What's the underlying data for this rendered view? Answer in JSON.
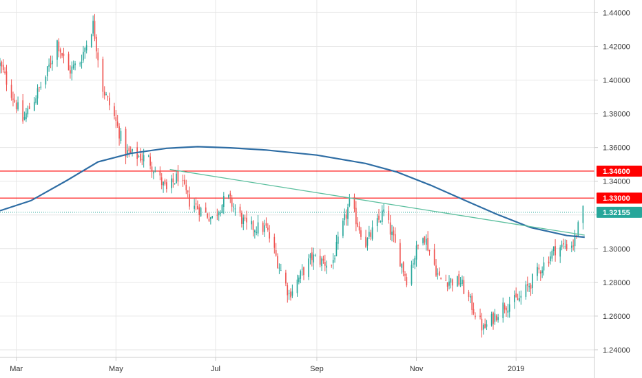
{
  "chart_data": {
    "type": "candlestick",
    "instrument_note": "",
    "colors": {
      "up": "#26a69a",
      "down": "#ef5350",
      "moving_average": "#2e6da4",
      "trendline": "#5bbf9e",
      "hline": "#ff0000",
      "last_price": "#26a69a",
      "grid": "#e6e6e6",
      "axis": "#cccccc"
    },
    "y_axis": {
      "range": [
        1.2355,
        1.4475
      ],
      "ticks": [
        "1.44000",
        "1.42000",
        "1.40000",
        "1.38000",
        "1.36000",
        "1.34000",
        "1.32000",
        "1.30000",
        "1.28000",
        "1.26000",
        "1.24000"
      ]
    },
    "x_axis": {
      "range": [
        "2018-02-19",
        "2019-02-18"
      ],
      "ticks": [
        {
          "date": "2018-03-01",
          "label": "Mar"
        },
        {
          "date": "2018-05-01",
          "label": "May"
        },
        {
          "date": "2018-07-01",
          "label": "Jul"
        },
        {
          "date": "2018-09-01",
          "label": "Sep"
        },
        {
          "date": "2018-11-01",
          "label": "Nov"
        },
        {
          "date": "2019-01-01",
          "label": "2019"
        }
      ]
    },
    "grid": true,
    "horizontal_lines": [
      {
        "value": 1.346,
        "label": "1.34600",
        "color": "#ff0000"
      },
      {
        "value": 1.33,
        "label": "1.33000",
        "color": "#ff0000"
      }
    ],
    "last_price": {
      "value": 1.32155,
      "label": "1.32155",
      "color": "#26a69a"
    },
    "trendline": {
      "start": {
        "date": "2018-06-03",
        "value": 1.347
      },
      "end": {
        "date": "2019-02-12",
        "value": 1.308
      }
    },
    "moving_average": [
      [
        "2018-02-19",
        1.3225
      ],
      [
        "2018-03-10",
        1.3285
      ],
      [
        "2018-04-01",
        1.3405
      ],
      [
        "2018-04-20",
        1.3515
      ],
      [
        "2018-05-10",
        1.3565
      ],
      [
        "2018-06-01",
        1.3595
      ],
      [
        "2018-06-20",
        1.3605
      ],
      [
        "2018-07-10",
        1.3598
      ],
      [
        "2018-08-01",
        1.3585
      ],
      [
        "2018-09-01",
        1.3555
      ],
      [
        "2018-10-01",
        1.3505
      ],
      [
        "2018-10-20",
        1.3455
      ],
      [
        "2018-11-10",
        1.3375
      ],
      [
        "2018-12-01",
        1.3285
      ],
      [
        "2018-12-20",
        1.3205
      ],
      [
        "2019-01-10",
        1.3125
      ],
      [
        "2019-02-01",
        1.3078
      ],
      [
        "2019-02-12",
        1.3068
      ]
    ],
    "price_path": [
      [
        "2018-02-19",
        1.409
      ],
      [
        "2018-03-05",
        1.376
      ],
      [
        "2018-03-19",
        1.402
      ],
      [
        "2018-03-26",
        1.423
      ],
      [
        "2018-04-02",
        1.405
      ],
      [
        "2018-04-09",
        1.411
      ],
      [
        "2018-04-17",
        1.433
      ],
      [
        "2018-04-23",
        1.395
      ],
      [
        "2018-04-30",
        1.378
      ],
      [
        "2018-05-07",
        1.357
      ],
      [
        "2018-05-21",
        1.353
      ],
      [
        "2018-06-01",
        1.334
      ],
      [
        "2018-06-08",
        1.343
      ],
      [
        "2018-06-15",
        1.328
      ],
      [
        "2018-06-29",
        1.318
      ],
      [
        "2018-07-08",
        1.331
      ],
      [
        "2018-07-20",
        1.313
      ],
      [
        "2018-08-01",
        1.312
      ],
      [
        "2018-08-15",
        1.273
      ],
      [
        "2018-08-29",
        1.295
      ],
      [
        "2018-09-10",
        1.29
      ],
      [
        "2018-09-21",
        1.327
      ],
      [
        "2018-10-01",
        1.303
      ],
      [
        "2018-10-12",
        1.322
      ],
      [
        "2018-10-26",
        1.282
      ],
      [
        "2018-11-05",
        1.31
      ],
      [
        "2018-11-15",
        1.282
      ],
      [
        "2018-11-28",
        1.28
      ],
      [
        "2018-12-12",
        1.252
      ],
      [
        "2018-12-24",
        1.266
      ],
      [
        "2019-01-03",
        1.27
      ],
      [
        "2019-01-15",
        1.287
      ],
      [
        "2019-01-25",
        1.3
      ],
      [
        "2019-02-05",
        1.303
      ],
      [
        "2019-02-11",
        1.322
      ]
    ]
  }
}
